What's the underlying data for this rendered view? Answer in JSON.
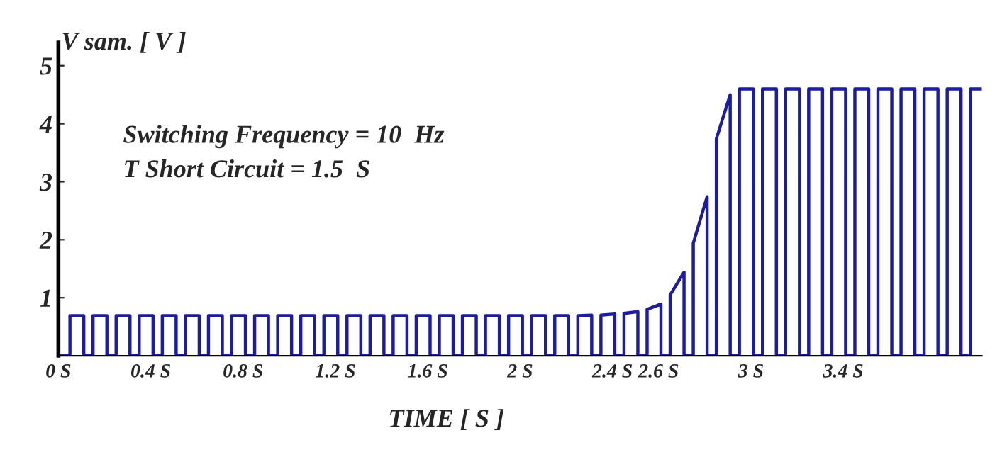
{
  "chart_data": {
    "type": "line",
    "xlabel": "TIME [ S ]",
    "ylabel": "V sam. [ V ]",
    "annotations": [
      "Switching Frequency = 10  Hz",
      "T Short Circuit = 1.5  S"
    ],
    "xlim": [
      0,
      4.0
    ],
    "ylim": [
      0,
      5.4
    ],
    "xticks": [
      {
        "value": 0,
        "label": "0 S"
      },
      {
        "value": 0.4,
        "label": "0.4 S"
      },
      {
        "value": 0.8,
        "label": "0.8 S"
      },
      {
        "value": 1.2,
        "label": "1.2 S"
      },
      {
        "value": 1.6,
        "label": "1.6 S"
      },
      {
        "value": 2.0,
        "label": "2 S"
      },
      {
        "value": 2.4,
        "label": "2.4 S"
      },
      {
        "value": 2.6,
        "label": "2.6 S"
      },
      {
        "value": 3.0,
        "label": "3 S"
      },
      {
        "value": 3.4,
        "label": "3.4 S"
      }
    ],
    "yticks": [
      1,
      2,
      3,
      4,
      5
    ],
    "grid": false,
    "legend": false,
    "marker": "none",
    "line_style": "solid",
    "series": [
      {
        "color": "#1c1c9c",
        "x": [
          0,
          0.05,
          0.05,
          0.11,
          0.11,
          0.15,
          0.15,
          0.21,
          0.21,
          0.25,
          0.25,
          0.31,
          0.31,
          0.35,
          0.35,
          0.41,
          0.41,
          0.45,
          0.45,
          0.51,
          0.51,
          0.55,
          0.55,
          0.61,
          0.61,
          0.65,
          0.65,
          0.71,
          0.71,
          0.75,
          0.75,
          0.81,
          0.81,
          0.85,
          0.85,
          0.91,
          0.91,
          0.95,
          0.95,
          1.01,
          1.01,
          1.05,
          1.05,
          1.11,
          1.11,
          1.15,
          1.15,
          1.21,
          1.21,
          1.25,
          1.25,
          1.31,
          1.31,
          1.35,
          1.35,
          1.41,
          1.41,
          1.45,
          1.45,
          1.51,
          1.51,
          1.55,
          1.55,
          1.61,
          1.61,
          1.65,
          1.65,
          1.71,
          1.71,
          1.75,
          1.75,
          1.81,
          1.81,
          1.85,
          1.85,
          1.91,
          1.91,
          1.95,
          1.95,
          2.01,
          2.01,
          2.05,
          2.05,
          2.11,
          2.11,
          2.15,
          2.15,
          2.21,
          2.21,
          2.25,
          2.25,
          2.31,
          2.31,
          2.35,
          2.35,
          2.41,
          2.41,
          2.45,
          2.45,
          2.51,
          2.51,
          2.55,
          2.55,
          2.61,
          2.61,
          2.65,
          2.65,
          2.71,
          2.71,
          2.75,
          2.75,
          2.81,
          2.81,
          2.85,
          2.85,
          2.91,
          2.91,
          2.95,
          2.95,
          3.01,
          3.01,
          3.05,
          3.05,
          3.11,
          3.11,
          3.15,
          3.15,
          3.21,
          3.21,
          3.25,
          3.25,
          3.31,
          3.31,
          3.35,
          3.35,
          3.41,
          3.41,
          3.45,
          3.45,
          3.51,
          3.51,
          3.55,
          3.55,
          3.61,
          3.61,
          3.65,
          3.65,
          3.71,
          3.71,
          3.75,
          3.75,
          3.81,
          3.81,
          3.85,
          3.85,
          3.91,
          3.91,
          3.95,
          3.95,
          4.0
        ],
        "values": [
          0,
          0,
          0.69,
          0.69,
          0,
          0,
          0.69,
          0.69,
          0,
          0,
          0.69,
          0.69,
          0,
          0,
          0.69,
          0.69,
          0,
          0,
          0.69,
          0.69,
          0,
          0,
          0.69,
          0.69,
          0,
          0,
          0.69,
          0.69,
          0,
          0,
          0.69,
          0.69,
          0,
          0,
          0.69,
          0.69,
          0,
          0,
          0.69,
          0.69,
          0,
          0,
          0.69,
          0.69,
          0,
          0,
          0.69,
          0.69,
          0,
          0,
          0.69,
          0.69,
          0,
          0,
          0.69,
          0.69,
          0,
          0,
          0.69,
          0.69,
          0,
          0,
          0.69,
          0.69,
          0,
          0,
          0.69,
          0.69,
          0,
          0,
          0.69,
          0.69,
          0,
          0,
          0.69,
          0.69,
          0,
          0,
          0.69,
          0.69,
          0,
          0,
          0.69,
          0.69,
          0,
          0,
          0.69,
          0.69,
          0,
          0,
          0.69,
          0.7,
          0,
          0,
          0.7,
          0.72,
          0,
          0,
          0.73,
          0.76,
          0,
          0,
          0.8,
          0.89,
          0,
          0,
          1.05,
          1.44,
          0,
          0,
          1.94,
          2.74,
          0,
          0,
          3.74,
          4.5,
          0,
          0,
          4.6,
          4.6,
          0,
          0,
          4.6,
          4.6,
          0,
          0,
          4.6,
          4.6,
          0,
          0,
          4.6,
          4.6,
          0,
          0,
          4.6,
          4.6,
          0,
          0,
          4.6,
          4.6,
          0,
          0,
          4.6,
          4.6,
          0,
          0,
          4.6,
          4.6,
          0,
          0,
          4.6,
          4.6,
          0,
          0,
          4.6,
          4.6,
          0,
          0,
          4.6,
          4.6
        ]
      }
    ]
  }
}
